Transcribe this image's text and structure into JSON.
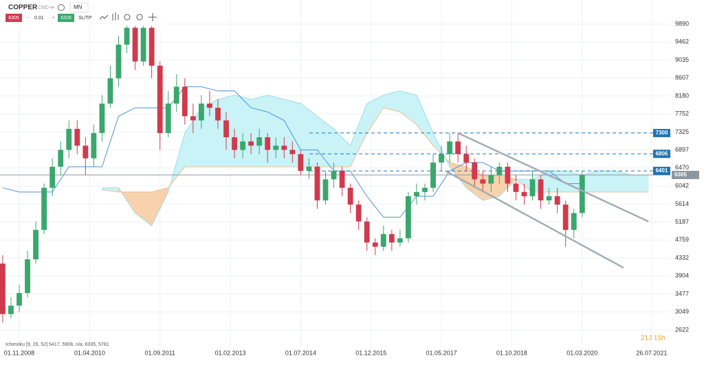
{
  "toolbar": {
    "symbol": "COPPER",
    "market": "CMD",
    "interval": "MN",
    "sell": "6305",
    "minus": "−",
    "lot": "0.01",
    "plus": "+",
    "buy": "6328",
    "sltp": "SL/TP"
  },
  "indicator_label": "Ichimoku [9, 26, 52] 5417, 5908, n/a, 6335, 5781",
  "countdown": "21J 15h",
  "chart_data": {
    "type": "candlestick",
    "x": [
      -4,
      -2,
      0,
      2,
      4,
      6,
      8,
      10,
      12,
      14,
      16,
      18,
      20,
      22,
      24,
      26,
      28,
      30,
      32,
      34,
      36,
      38,
      40,
      42,
      44,
      46,
      48,
      50,
      52,
      54,
      56,
      58,
      60,
      62,
      64,
      66,
      68,
      70,
      72,
      74,
      76,
      78,
      80,
      82,
      84,
      86,
      88,
      90,
      92,
      94,
      96,
      98,
      100,
      102,
      104,
      106,
      108,
      110,
      112,
      114,
      116,
      118,
      120,
      122,
      124,
      126,
      128,
      130,
      132,
      134,
      136
    ],
    "open": [
      4200,
      3000,
      3200,
      3500,
      4300,
      5000,
      6000,
      6500,
      6900,
      7400,
      7000,
      6700,
      7300,
      8000,
      8600,
      9400,
      9800,
      9000,
      9800,
      8900,
      7300,
      8000,
      8400,
      7700,
      7600,
      8000,
      7900,
      7600,
      7200,
      6900,
      7100,
      7000,
      7200,
      6900,
      7000,
      6900,
      6800,
      6400,
      6500,
      5700,
      6200,
      6400,
      6000,
      5600,
      5200,
      4700,
      4600,
      4900,
      4700,
      4800,
      5800,
      5900,
      6000,
      6600,
      6800,
      7100,
      6800,
      6600,
      6200,
      6100,
      6300,
      6500,
      6100,
      5900,
      5800,
      6200,
      5700,
      5800,
      5600,
      5000,
      5400
    ],
    "high": [
      4400,
      3400,
      3700,
      4500,
      5200,
      6100,
      6700,
      7100,
      7600,
      7600,
      7200,
      7500,
      8200,
      8900,
      9600,
      9900,
      9900,
      9900,
      9900,
      9000,
      8300,
      8700,
      8600,
      8000,
      8200,
      8300,
      8100,
      7800,
      7400,
      7300,
      7300,
      7400,
      7300,
      7200,
      7200,
      7100,
      6900,
      6700,
      6600,
      6400,
      6600,
      6500,
      6100,
      5700,
      5300,
      4800,
      5100,
      5000,
      5000,
      5900,
      6100,
      6100,
      6800,
      7000,
      7300,
      7300,
      7000,
      6700,
      6400,
      6500,
      6600,
      6600,
      6300,
      6100,
      6400,
      6300,
      6000,
      6000,
      5700,
      5500,
      6400
    ],
    "low": [
      2800,
      2900,
      3050,
      3400,
      4200,
      4900,
      5800,
      6300,
      6700,
      6800,
      6300,
      6500,
      7100,
      7900,
      8400,
      9200,
      8800,
      8900,
      8600,
      6900,
      7200,
      7800,
      7500,
      7300,
      7400,
      7700,
      7400,
      6900,
      6700,
      6700,
      6800,
      6800,
      6600,
      6700,
      6700,
      6600,
      6300,
      6200,
      5500,
      5600,
      6000,
      5800,
      5400,
      5000,
      4500,
      4400,
      4500,
      4500,
      4600,
      4700,
      5600,
      5700,
      5900,
      6400,
      6600,
      6600,
      6400,
      6000,
      5900,
      5900,
      6100,
      5900,
      5700,
      5600,
      5700,
      5500,
      5600,
      5400,
      4600,
      4800,
      5300
    ],
    "close": [
      3000,
      3200,
      3500,
      4300,
      5000,
      6000,
      6500,
      6900,
      7400,
      7000,
      6700,
      7300,
      8000,
      8600,
      9400,
      9800,
      9000,
      9800,
      8900,
      7300,
      8000,
      8400,
      7700,
      7600,
      8000,
      7900,
      7600,
      7200,
      6900,
      7100,
      7000,
      7200,
      6900,
      7000,
      6900,
      6800,
      6400,
      6500,
      5700,
      6200,
      6400,
      6000,
      5600,
      5200,
      4700,
      4600,
      4900,
      4700,
      4800,
      5800,
      5900,
      6000,
      6600,
      6800,
      7100,
      6800,
      6600,
      6200,
      6100,
      6300,
      6500,
      6100,
      5900,
      5800,
      6200,
      5700,
      5800,
      5600,
      5000,
      5400,
      6305
    ],
    "up_color": "#3aa76d",
    "down_color": "#d03a4c",
    "cloud": {
      "x": [
        20,
        24,
        28,
        32,
        36,
        40,
        44,
        48,
        52,
        56,
        60,
        64,
        68,
        72,
        76,
        80,
        84,
        88,
        92,
        96,
        100,
        104,
        108,
        112,
        116,
        120,
        124,
        128,
        132,
        136,
        140,
        144,
        148,
        152
      ],
      "span_a": [
        6000,
        6000,
        5400,
        5100,
        5900,
        7300,
        7900,
        8100,
        8200,
        8100,
        8200,
        8100,
        8000,
        7700,
        7400,
        7000,
        8000,
        8200,
        8300,
        8200,
        7300,
        6500,
        6000,
        5700,
        5800,
        6200,
        6200,
        6400,
        6400,
        6300,
        6400,
        6400,
        6300,
        6300
      ],
      "span_b": [
        5950,
        5900,
        5900,
        5900,
        6000,
        6500,
        6500,
        6500,
        6500,
        6500,
        6500,
        6500,
        6500,
        6500,
        6500,
        6500,
        7300,
        7900,
        7800,
        7500,
        7000,
        6600,
        6500,
        6300,
        6300,
        6200,
        5900,
        5900,
        5900,
        5900,
        5900,
        5900,
        5900,
        5900
      ],
      "up_color": "#c9f3f7",
      "down_color": "#f8d2ad"
    },
    "kijun": {
      "color": "#4a90d9",
      "x": [
        -4,
        0,
        8,
        12,
        16,
        20,
        24,
        28,
        32,
        36,
        40,
        44,
        48,
        52,
        56,
        60,
        64,
        68,
        72,
        76,
        80,
        84,
        88,
        92,
        96,
        100,
        104,
        108,
        112,
        116,
        120,
        124,
        128,
        132,
        136
      ],
      "values": [
        6000,
        5900,
        5900,
        6500,
        6500,
        6500,
        7700,
        7900,
        7900,
        7900,
        8400,
        8400,
        8300,
        8300,
        7900,
        7800,
        7600,
        6900,
        6900,
        6400,
        6400,
        5800,
        5300,
        5300,
        5800,
        5800,
        6400,
        6600,
        6600,
        6400,
        6400,
        6400,
        6400,
        6100,
        6100
      ]
    },
    "trendlines": [
      {
        "x": [
          106,
          152
        ],
        "y": [
          7300,
          5200
        ]
      },
      {
        "x": [
          103,
          146
        ],
        "y": [
          6400,
          4100
        ]
      }
    ],
    "trend_color": "#a3acb4",
    "levels": [
      {
        "value": 7300,
        "color": "#2174b0",
        "dashed": true
      },
      {
        "value": 6806,
        "color": "#2174b0",
        "dashed": true
      },
      {
        "value": 6401,
        "color": "#2174b0",
        "dashed": true
      },
      {
        "value": 6305,
        "color": "#8e979e",
        "dashed": false
      }
    ],
    "xlim": [
      -4.65,
      157.3
    ],
    "ylim": [
      2231,
      10460
    ],
    "yticks": [
      9890,
      9462,
      9035,
      8607,
      8180,
      7752,
      7325,
      6897,
      6470,
      6042,
      5614,
      5187,
      4759,
      4332,
      3904,
      3477,
      3049,
      2622
    ],
    "xticks": [
      {
        "value": 0,
        "label": "01.11.2008"
      },
      {
        "value": 17,
        "label": "01.04.2010"
      },
      {
        "value": 34,
        "label": "01.09.2011"
      },
      {
        "value": 51,
        "label": "01.02.2013"
      },
      {
        "value": 68,
        "label": "01.07.2014"
      },
      {
        "value": 85,
        "label": "01.12.2015"
      },
      {
        "value": 102,
        "label": "01.05.2017"
      },
      {
        "value": 119,
        "label": "01.10.2018"
      },
      {
        "value": 136,
        "label": "01.03.2020"
      },
      {
        "value": 152.8,
        "label": "26.07.2021"
      }
    ],
    "grid": true
  }
}
